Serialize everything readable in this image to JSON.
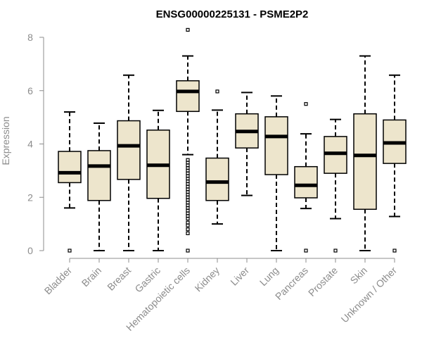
{
  "chart_data": {
    "type": "boxplot",
    "title": "ENSG00000225131 - PSME2P2",
    "xlabel": "",
    "ylabel": "Expression",
    "ylim": [
      0,
      8.4
    ],
    "yticks": [
      0,
      2,
      4,
      6,
      8
    ],
    "grid": false,
    "categories": [
      "Bladder",
      "Brain",
      "Breast",
      "Gastric",
      "Hematopoietic cells",
      "Kidney",
      "Liver",
      "Lung",
      "Pancreas",
      "Prostate",
      "Skin",
      "Unknown / Other"
    ],
    "boxes": [
      {
        "category": "Bladder",
        "whisker_low": 1.6,
        "q1": 2.55,
        "median": 2.92,
        "q3": 3.72,
        "whisker_high": 5.2,
        "outliers": [
          0.0
        ]
      },
      {
        "category": "Brain",
        "whisker_low": 0.0,
        "q1": 1.88,
        "median": 3.17,
        "q3": 3.75,
        "whisker_high": 4.78,
        "outliers": []
      },
      {
        "category": "Breast",
        "whisker_low": 0.0,
        "q1": 2.67,
        "median": 3.93,
        "q3": 4.87,
        "whisker_high": 6.58,
        "outliers": []
      },
      {
        "category": "Gastric",
        "whisker_low": 0.0,
        "q1": 1.96,
        "median": 3.2,
        "q3": 4.52,
        "whisker_high": 5.26,
        "outliers": []
      },
      {
        "category": "Hematopoietic cells",
        "whisker_low": 3.6,
        "q1": 5.22,
        "median": 5.97,
        "q3": 6.37,
        "whisker_high": 7.3,
        "outliers": [
          8.28,
          0.0,
          0.65,
          0.8,
          0.95,
          1.05,
          1.2,
          1.3,
          1.4,
          1.5,
          1.6,
          1.7,
          1.8,
          1.9,
          2.0,
          2.1,
          2.2,
          2.3,
          2.4,
          2.5,
          2.6,
          2.7,
          2.8,
          2.9,
          3.0,
          3.1,
          3.2,
          3.3,
          3.4
        ]
      },
      {
        "category": "Kidney",
        "whisker_low": 1.0,
        "q1": 1.88,
        "median": 2.57,
        "q3": 3.47,
        "whisker_high": 5.27,
        "outliers": [
          5.97
        ]
      },
      {
        "category": "Liver",
        "whisker_low": 2.07,
        "q1": 3.85,
        "median": 4.47,
        "q3": 5.13,
        "whisker_high": 5.93,
        "outliers": []
      },
      {
        "category": "Lung",
        "whisker_low": 0.0,
        "q1": 2.85,
        "median": 4.28,
        "q3": 5.02,
        "whisker_high": 5.8,
        "outliers": []
      },
      {
        "category": "Pancreas",
        "whisker_low": 1.58,
        "q1": 1.98,
        "median": 2.45,
        "q3": 3.15,
        "whisker_high": 4.38,
        "outliers": [
          5.5,
          0.0
        ]
      },
      {
        "category": "Prostate",
        "whisker_low": 1.2,
        "q1": 2.9,
        "median": 3.65,
        "q3": 4.28,
        "whisker_high": 4.92,
        "outliers": [
          0.0
        ]
      },
      {
        "category": "Skin",
        "whisker_low": 0.0,
        "q1": 1.55,
        "median": 3.57,
        "q3": 5.13,
        "whisker_high": 7.3,
        "outliers": []
      },
      {
        "category": "Unknown / Other",
        "whisker_low": 1.28,
        "q1": 3.27,
        "median": 4.04,
        "q3": 4.9,
        "whisker_high": 6.58,
        "outliers": [
          0.0
        ]
      }
    ],
    "colors": {
      "box_fill": "#ede5cc",
      "box_stroke": "#000000",
      "median": "#000000",
      "axis": "#8c8c8c",
      "title": "#000000"
    }
  }
}
